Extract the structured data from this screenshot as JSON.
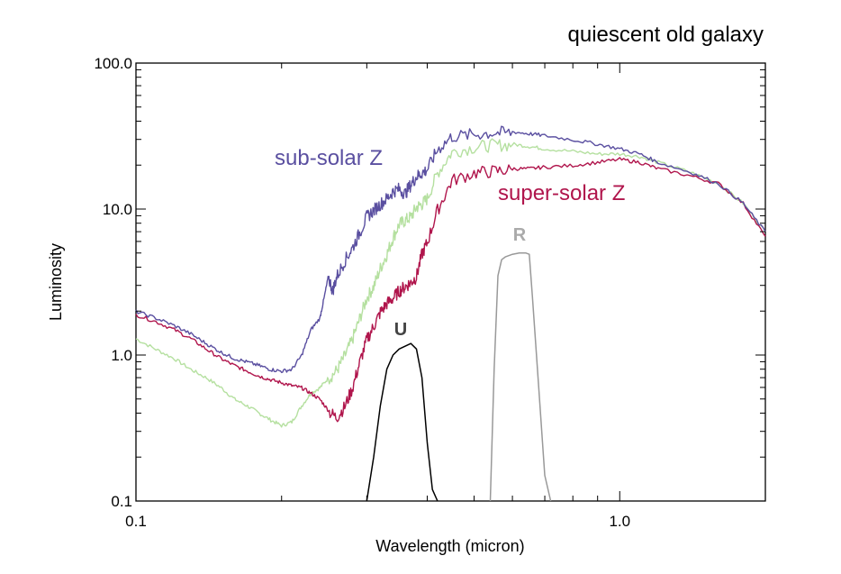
{
  "chart_data": {
    "type": "line",
    "title": "quiescent old galaxy",
    "xlabel": "Wavelength (micron)",
    "ylabel": "Luminosity",
    "xscale": "log",
    "yscale": "log",
    "xlim": [
      0.1,
      2.0
    ],
    "ylim": [
      0.1,
      100.0
    ],
    "xticks": [
      "0.1",
      "1.0"
    ],
    "yticks": [
      "0.1",
      "1.0",
      "10.0",
      "100.0"
    ],
    "grid": false,
    "series": [
      {
        "name": "sub-solar Z",
        "color": "#5a4fa0",
        "x": [
          0.1,
          0.11,
          0.12,
          0.13,
          0.14,
          0.15,
          0.16,
          0.17,
          0.18,
          0.19,
          0.2,
          0.21,
          0.22,
          0.23,
          0.24,
          0.245,
          0.25,
          0.255,
          0.26,
          0.27,
          0.28,
          0.29,
          0.3,
          0.31,
          0.32,
          0.33,
          0.34,
          0.35,
          0.36,
          0.37,
          0.38,
          0.39,
          0.4,
          0.42,
          0.45,
          0.5,
          0.55,
          0.6,
          0.65,
          0.7,
          0.8,
          0.9,
          1.0,
          1.1,
          1.2,
          1.4,
          1.6,
          1.8,
          2.0
        ],
        "y": [
          2.0,
          1.8,
          1.6,
          1.4,
          1.2,
          1.05,
          0.95,
          0.9,
          0.85,
          0.8,
          0.78,
          0.8,
          1.0,
          1.5,
          1.8,
          2.5,
          3.5,
          2.8,
          3.5,
          4.5,
          5.5,
          7.0,
          9.0,
          10.0,
          11.0,
          12.0,
          13.5,
          14.0,
          13.0,
          15.0,
          17.0,
          18.0,
          19.0,
          26.0,
          32.0,
          33.0,
          34.0,
          34.0,
          33.0,
          32.0,
          30.0,
          28.0,
          26.0,
          24.0,
          21.0,
          18.0,
          15.0,
          11.0,
          7.0
        ]
      },
      {
        "name": "",
        "color": "#b5e0a0",
        "x": [
          0.1,
          0.11,
          0.12,
          0.13,
          0.14,
          0.15,
          0.16,
          0.17,
          0.18,
          0.19,
          0.2,
          0.21,
          0.22,
          0.23,
          0.24,
          0.25,
          0.26,
          0.27,
          0.28,
          0.29,
          0.3,
          0.31,
          0.32,
          0.33,
          0.34,
          0.35,
          0.36,
          0.37,
          0.38,
          0.39,
          0.4,
          0.42,
          0.45,
          0.5,
          0.55,
          0.6,
          0.65,
          0.7,
          0.8,
          0.9,
          1.0,
          1.1,
          1.2,
          1.4,
          1.6,
          1.8,
          2.0
        ],
        "y": [
          1.3,
          1.1,
          0.95,
          0.8,
          0.7,
          0.6,
          0.5,
          0.45,
          0.4,
          0.36,
          0.33,
          0.35,
          0.45,
          0.55,
          0.6,
          0.7,
          0.8,
          1.0,
          1.3,
          1.8,
          2.5,
          3.0,
          4.0,
          5.0,
          6.5,
          8.0,
          8.5,
          9.0,
          10.5,
          11.0,
          12.0,
          18.0,
          25.0,
          27.0,
          28.0,
          28.0,
          27.0,
          26.0,
          25.0,
          24.0,
          24.0,
          23.0,
          21.0,
          18.0,
          15.0,
          11.0,
          7.0
        ]
      },
      {
        "name": "super-solar Z",
        "color": "#b0154c",
        "x": [
          0.1,
          0.11,
          0.12,
          0.13,
          0.14,
          0.15,
          0.16,
          0.17,
          0.18,
          0.19,
          0.2,
          0.21,
          0.22,
          0.23,
          0.24,
          0.25,
          0.26,
          0.27,
          0.28,
          0.29,
          0.3,
          0.31,
          0.32,
          0.33,
          0.34,
          0.35,
          0.36,
          0.37,
          0.38,
          0.39,
          0.4,
          0.42,
          0.45,
          0.5,
          0.55,
          0.6,
          0.65,
          0.7,
          0.8,
          0.9,
          1.0,
          1.1,
          1.2,
          1.4,
          1.6,
          1.8,
          2.0
        ],
        "y": [
          1.9,
          1.7,
          1.5,
          1.3,
          1.1,
          0.95,
          0.85,
          0.78,
          0.72,
          0.68,
          0.65,
          0.62,
          0.6,
          0.55,
          0.5,
          0.42,
          0.38,
          0.45,
          0.6,
          0.9,
          1.3,
          1.6,
          2.0,
          2.3,
          2.5,
          2.8,
          3.0,
          3.2,
          3.5,
          5.0,
          6.0,
          10.0,
          16.0,
          18.0,
          18.5,
          19.0,
          19.0,
          19.5,
          20.0,
          21.0,
          22.0,
          21.0,
          19.0,
          17.0,
          15.0,
          11.0,
          6.5
        ]
      }
    ],
    "filters": [
      {
        "name": "U",
        "color": "#000000",
        "x": [
          0.3,
          0.31,
          0.32,
          0.33,
          0.34,
          0.35,
          0.36,
          0.37,
          0.38,
          0.39,
          0.4,
          0.41,
          0.42
        ],
        "y": [
          0.1,
          0.2,
          0.45,
          0.8,
          1.0,
          1.1,
          1.15,
          1.2,
          1.1,
          0.7,
          0.25,
          0.12,
          0.1
        ]
      },
      {
        "name": "R",
        "color": "#999999",
        "x": [
          0.54,
          0.55,
          0.56,
          0.57,
          0.58,
          0.6,
          0.62,
          0.64,
          0.65,
          0.66,
          0.68,
          0.7,
          0.72
        ],
        "y": [
          0.1,
          0.8,
          3.5,
          4.5,
          4.7,
          4.9,
          5.0,
          5.0,
          4.9,
          2.5,
          0.6,
          0.15,
          0.1
        ]
      }
    ]
  }
}
